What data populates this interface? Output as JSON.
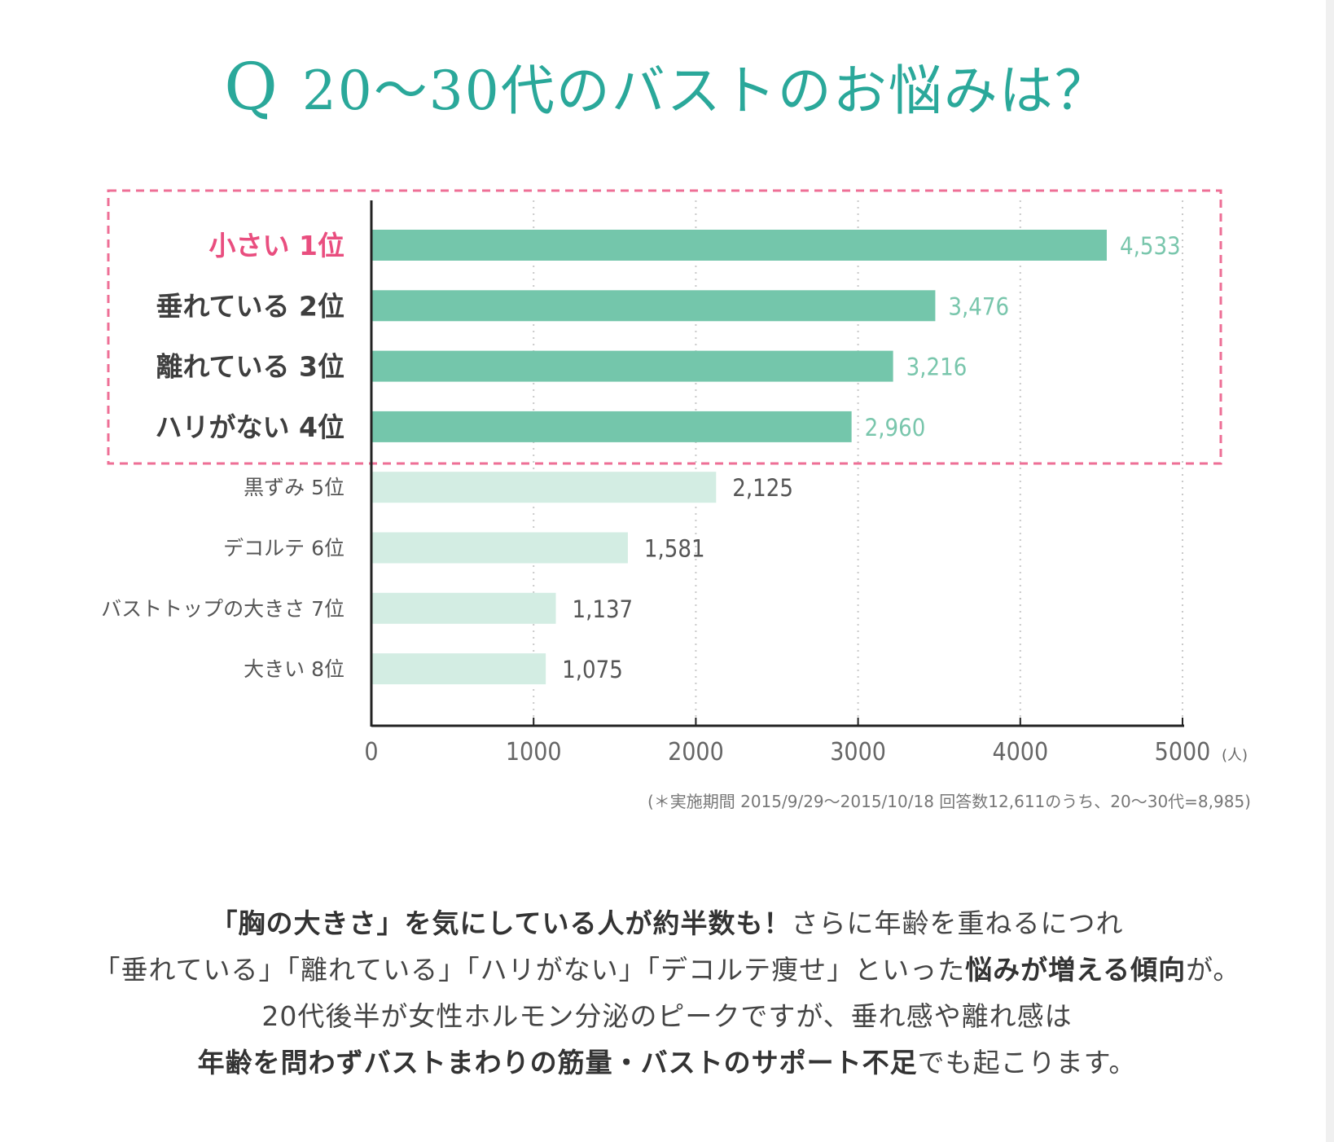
{
  "title": {
    "q": "Q",
    "text": "20〜30代のバストのお悩みは？"
  },
  "colors": {
    "accent": "#2aa89a",
    "top_bar": "#74c6ab",
    "light_bar": "#d3ede3",
    "highlight_label": "#e94e7f",
    "dashed_box": "#ee6f96",
    "top_value": "#79c6ac",
    "light_value": "#555555"
  },
  "chart_data": {
    "type": "bar",
    "orientation": "horizontal",
    "categories": [
      "小さい 1位",
      "垂れている 2位",
      "離れている 3位",
      "ハリがない 4位",
      "黒ずみ 5位",
      "デコルテ 6位",
      "バストトップの大きさ 7位",
      "大きい 8位"
    ],
    "values": [
      4533,
      3476,
      3216,
      2960,
      2125,
      1581,
      1137,
      1075
    ],
    "value_labels": [
      "4,533",
      "3,476",
      "3,216",
      "2,960",
      "2,125",
      "1,581",
      "1,137",
      "1,075"
    ],
    "highlighted_count": 4,
    "xlim": [
      0,
      5000
    ],
    "xticks": [
      "0",
      "1000",
      "2000",
      "3000",
      "4000",
      "5000"
    ],
    "xunit": "(人)",
    "grid": "vertical-dotted",
    "highlight_box": "dashed"
  },
  "footnote": "(＊実施期間 2015/9/29〜2015/10/18 回答数12,611のうち、20〜30代=8,985)",
  "description": {
    "line1_bold": "「胸の大きさ」を気にしている人が約半数も！",
    "line1_rest": "さらに年齢を重ねるにつれ",
    "line2_a": "「垂れている」「離れている」「ハリがない」「デコルテ痩せ」といった",
    "line2_bold": "悩みが増える傾向",
    "line2_b": "が。",
    "line3": "20代後半が女性ホルモン分泌のピークですが、垂れ感や離れ感は",
    "line4_bold": "年齢を問わずバストまわりの筋量・バストのサポート不足",
    "line4_rest": "でも起こります。"
  }
}
